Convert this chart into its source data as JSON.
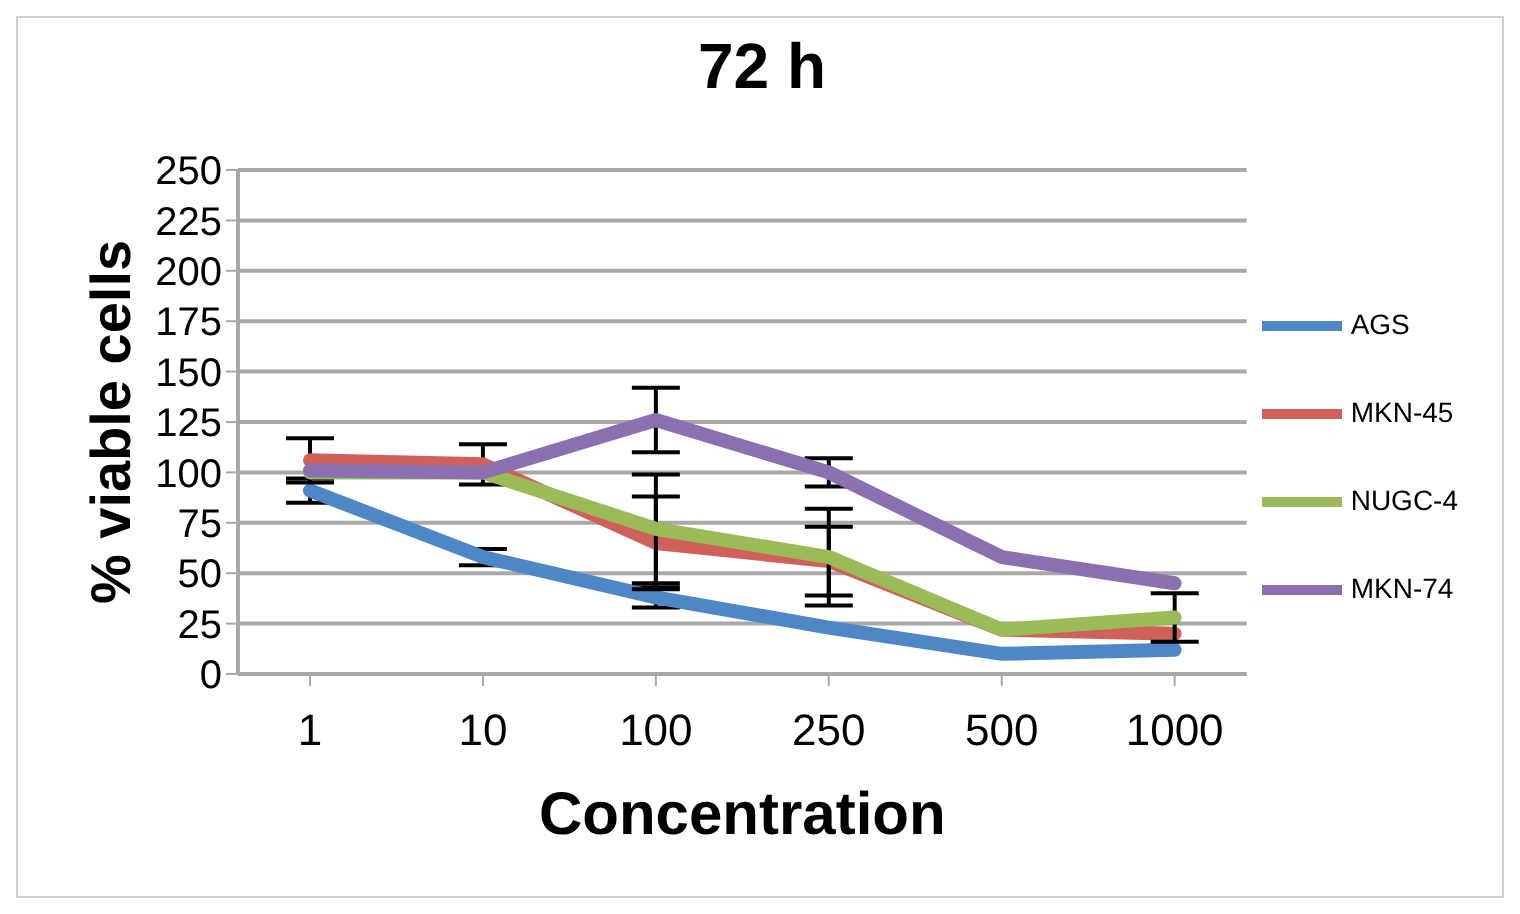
{
  "chart_data": {
    "type": "line",
    "title": "72 h",
    "xlabel": "Concentration",
    "ylabel": "% viable cells",
    "categories": [
      "1",
      "10",
      "100",
      "250",
      "500",
      "1000"
    ],
    "series": [
      {
        "name": "AGS",
        "color": "#4f86c6",
        "values": [
          91,
          58,
          38,
          23,
          10,
          12
        ],
        "errors": [
          6,
          4,
          5,
          null,
          null,
          null
        ]
      },
      {
        "name": "MKN-45",
        "color": "#d0605a",
        "values": [
          106,
          104,
          65,
          56,
          22,
          20
        ],
        "errors": [
          11,
          10,
          23,
          17,
          null,
          null
        ]
      },
      {
        "name": "NUGC-4",
        "color": "#9bbb59",
        "values": [
          100,
          100,
          72,
          58,
          22,
          28
        ],
        "errors": [
          null,
          null,
          27,
          24,
          null,
          12
        ]
      },
      {
        "name": "MKN-74",
        "color": "#8c6fb0",
        "values": [
          101,
          100,
          126,
          100,
          58,
          45
        ],
        "errors": [
          null,
          null,
          16,
          7,
          null,
          null
        ]
      }
    ],
    "ylim": [
      0,
      250
    ],
    "yticks": [
      0,
      25,
      50,
      75,
      100,
      125,
      150,
      175,
      200,
      225,
      250
    ],
    "grid": "y",
    "legend": "right",
    "marker": "none",
    "line_style": "solid"
  }
}
